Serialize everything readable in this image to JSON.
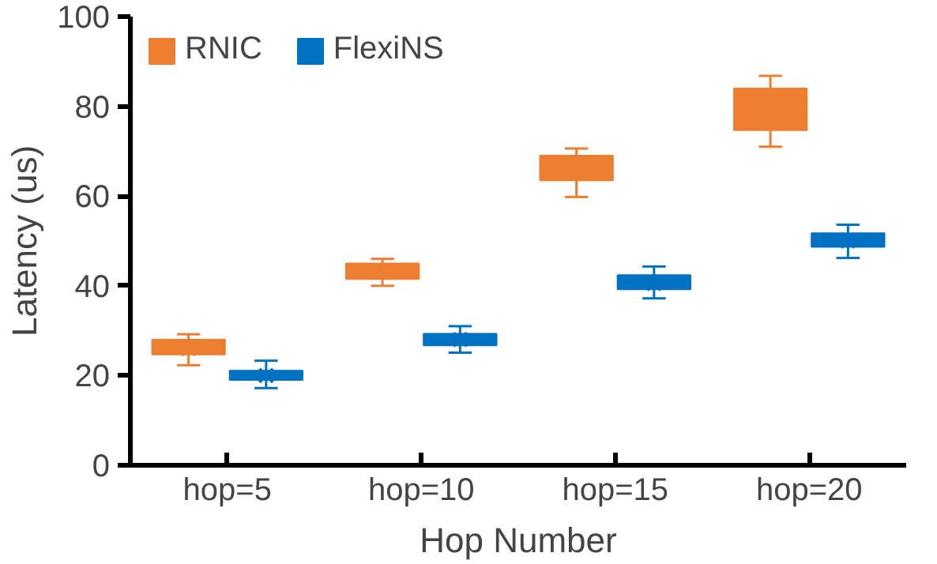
{
  "chart_data": {
    "type": "box",
    "xlabel": "Hop Number",
    "ylabel": "Latency (us)",
    "categories": [
      "hop=5",
      "hop=10",
      "hop=15",
      "hop=20"
    ],
    "ylim": [
      0,
      100
    ],
    "yticks": [
      0,
      20,
      40,
      60,
      80,
      100
    ],
    "grid": false,
    "legend": "top left",
    "series": [
      {
        "name": "RNIC",
        "color": "#ed7d31",
        "boxes": [
          {
            "low": 22.3,
            "q1": 24.7,
            "median": 26.3,
            "q3": 28,
            "high": 29.2,
            "mean": 26
          },
          {
            "low": 40,
            "q1": 41.5,
            "median": 43.2,
            "q3": 45,
            "high": 46,
            "mean": 43
          },
          {
            "low": 59.8,
            "q1": 63.5,
            "median": 66.2,
            "q3": 69,
            "high": 70.6,
            "mean": 66
          },
          {
            "low": 71,
            "q1": 74.7,
            "median": 79.3,
            "q3": 84,
            "high": 86.8,
            "mean": 79
          }
        ]
      },
      {
        "name": "FlexiNS",
        "color": "#0070c0",
        "boxes": [
          {
            "low": 17.2,
            "q1": 19,
            "median": 20,
            "q3": 21.1,
            "high": 23.3,
            "mean": 20
          },
          {
            "low": 25.1,
            "q1": 26.7,
            "median": 28,
            "q3": 29.3,
            "high": 31,
            "mean": 28
          },
          {
            "low": 37.2,
            "q1": 39.2,
            "median": 40.8,
            "q3": 42.4,
            "high": 44.3,
            "mean": 40.5
          },
          {
            "low": 46.2,
            "q1": 48.7,
            "median": 50.2,
            "q3": 51.7,
            "high": 53.6,
            "mean": 50
          }
        ]
      }
    ]
  }
}
